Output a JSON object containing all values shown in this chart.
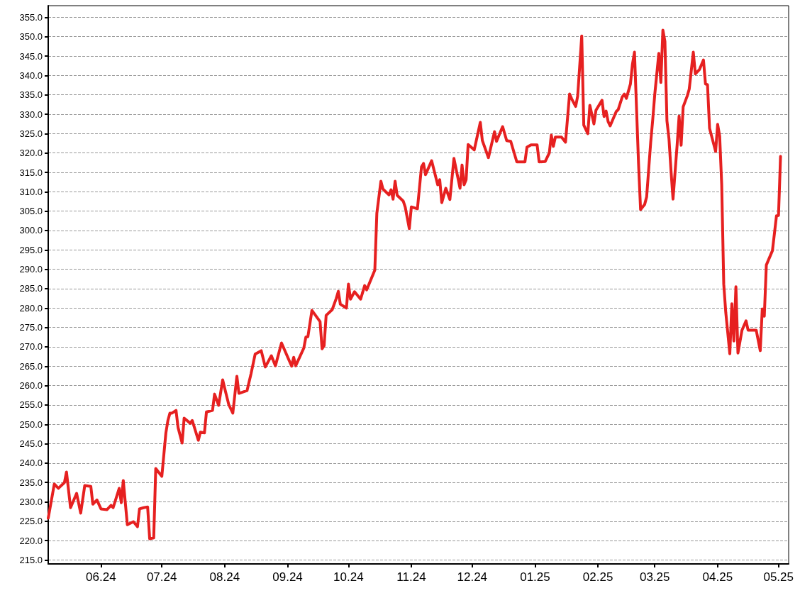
{
  "chart_data": {
    "type": "line",
    "color": "#e62020",
    "line_style": "solid",
    "marker": "none",
    "grid": "y",
    "xlim": [
      "2024-05-06",
      "2025-05-06"
    ],
    "xticks": [
      {
        "value": "2024-06-01",
        "label": "06.24"
      },
      {
        "value": "2024-07-01",
        "label": "07.24"
      },
      {
        "value": "2024-08-01",
        "label": "08.24"
      },
      {
        "value": "2024-09-01",
        "label": "09.24"
      },
      {
        "value": "2024-10-01",
        "label": "10.24"
      },
      {
        "value": "2024-11-01",
        "label": "11.24"
      },
      {
        "value": "2024-12-01",
        "label": "12.24"
      },
      {
        "value": "2025-01-01",
        "label": "01.25"
      },
      {
        "value": "2025-02-01",
        "label": "02.25"
      },
      {
        "value": "2025-03-01",
        "label": "03.25"
      },
      {
        "value": "2025-04-01",
        "label": "04.25"
      },
      {
        "value": "2025-05-01",
        "label": "05.25"
      }
    ],
    "ylim": [
      214,
      358
    ],
    "yticks": [
      {
        "value": 215,
        "label": "215.0"
      },
      {
        "value": 220,
        "label": "220.0"
      },
      {
        "value": 225,
        "label": "225.0"
      },
      {
        "value": 230,
        "label": "230.0"
      },
      {
        "value": 235,
        "label": "235.0"
      },
      {
        "value": 240,
        "label": "240.0"
      },
      {
        "value": 245,
        "label": "245.0"
      },
      {
        "value": 250,
        "label": "250.0"
      },
      {
        "value": 255,
        "label": "255.0"
      },
      {
        "value": 260,
        "label": "260.0"
      },
      {
        "value": 265,
        "label": "265.0"
      },
      {
        "value": 270,
        "label": "270.0"
      },
      {
        "value": 275,
        "label": "275.0"
      },
      {
        "value": 280,
        "label": "280.0"
      },
      {
        "value": 285,
        "label": "285.0"
      },
      {
        "value": 290,
        "label": "290.0"
      },
      {
        "value": 295,
        "label": "295.0"
      },
      {
        "value": 300,
        "label": "300.0"
      },
      {
        "value": 305,
        "label": "305.0"
      },
      {
        "value": 310,
        "label": "310.0"
      },
      {
        "value": 315,
        "label": "315.0"
      },
      {
        "value": 320,
        "label": "320.0"
      },
      {
        "value": 325,
        "label": "325.0"
      },
      {
        "value": 330,
        "label": "330.0"
      },
      {
        "value": 335,
        "label": "335.0"
      },
      {
        "value": 340,
        "label": "340.0"
      },
      {
        "value": 345,
        "label": "345.0"
      },
      {
        "value": 350,
        "label": "350.0"
      },
      {
        "value": 355,
        "label": "355.0"
      }
    ],
    "x": [
      "2024-05-06",
      "2024-05-09",
      "2024-05-11",
      "2024-05-14",
      "2024-05-15",
      "2024-05-17",
      "2024-05-20",
      "2024-05-22",
      "2024-05-24",
      "2024-05-27",
      "2024-05-28",
      "2024-05-30",
      "2024-06-01",
      "2024-06-04",
      "2024-06-06",
      "2024-06-07",
      "2024-06-10",
      "2024-06-11",
      "2024-06-12",
      "2024-06-14",
      "2024-06-17",
      "2024-06-19",
      "2024-06-20",
      "2024-06-22",
      "2024-06-24",
      "2024-06-25",
      "2024-06-27",
      "2024-06-28",
      "2024-07-01",
      "2024-07-03",
      "2024-07-04",
      "2024-07-05",
      "2024-07-06",
      "2024-07-08",
      "2024-07-09",
      "2024-07-11",
      "2024-07-12",
      "2024-07-15",
      "2024-07-16",
      "2024-07-19",
      "2024-07-20",
      "2024-07-22",
      "2024-07-23",
      "2024-07-26",
      "2024-07-27",
      "2024-07-29",
      "2024-07-31",
      "2024-08-01",
      "2024-08-03",
      "2024-08-05",
      "2024-08-07",
      "2024-08-08",
      "2024-08-12",
      "2024-08-14",
      "2024-08-16",
      "2024-08-19",
      "2024-08-21",
      "2024-08-24",
      "2024-08-26",
      "2024-08-29",
      "2024-09-03",
      "2024-09-04",
      "2024-09-05",
      "2024-09-09",
      "2024-09-10",
      "2024-09-11",
      "2024-09-13",
      "2024-09-17",
      "2024-09-18",
      "2024-09-19",
      "2024-09-20",
      "2024-09-23",
      "2024-09-25",
      "2024-09-26",
      "2024-09-27",
      "2024-09-30",
      "2024-10-01",
      "2024-10-02",
      "2024-10-04",
      "2024-10-07",
      "2024-10-09",
      "2024-10-10",
      "2024-10-14",
      "2024-10-15",
      "2024-10-17",
      "2024-10-18",
      "2024-10-21",
      "2024-10-22",
      "2024-10-23",
      "2024-10-24",
      "2024-10-25",
      "2024-10-28",
      "2024-10-29",
      "2024-10-31",
      "2024-11-01",
      "2024-11-04",
      "2024-11-06",
      "2024-11-07",
      "2024-11-08",
      "2024-11-11",
      "2024-11-14",
      "2024-11-15",
      "2024-11-16",
      "2024-11-18",
      "2024-11-20",
      "2024-11-22",
      "2024-11-25",
      "2024-11-26",
      "2024-11-27",
      "2024-11-28",
      "2024-11-29",
      "2024-12-02",
      "2024-12-05",
      "2024-12-06",
      "2024-12-09",
      "2024-12-12",
      "2024-12-13",
      "2024-12-16",
      "2024-12-18",
      "2024-12-20",
      "2024-12-23",
      "2024-12-27",
      "2024-12-28",
      "2024-12-30",
      "2025-01-02",
      "2025-01-03",
      "2025-01-06",
      "2025-01-08",
      "2025-01-09",
      "2025-01-10",
      "2025-01-11",
      "2025-01-14",
      "2025-01-16",
      "2025-01-18",
      "2025-01-19",
      "2025-01-21",
      "2025-01-22",
      "2025-01-24",
      "2025-01-25",
      "2025-01-27",
      "2025-01-28",
      "2025-01-30",
      "2025-01-31",
      "2025-02-03",
      "2025-02-04",
      "2025-02-05",
      "2025-02-06",
      "2025-02-07",
      "2025-02-10",
      "2025-02-11",
      "2025-02-13",
      "2025-02-14",
      "2025-02-15",
      "2025-02-17",
      "2025-02-18",
      "2025-02-19",
      "2025-02-21",
      "2025-02-22",
      "2025-02-24",
      "2025-02-25",
      "2025-02-27",
      "2025-02-28",
      "2025-03-01",
      "2025-03-03",
      "2025-03-04",
      "2025-03-05",
      "2025-03-06",
      "2025-03-07",
      "2025-03-08",
      "2025-03-09",
      "2025-03-10",
      "2025-03-12",
      "2025-03-13",
      "2025-03-14",
      "2025-03-15",
      "2025-03-17",
      "2025-03-18",
      "2025-03-20",
      "2025-03-21",
      "2025-03-23",
      "2025-03-25",
      "2025-03-26",
      "2025-03-27",
      "2025-03-28",
      "2025-03-31",
      "2025-04-01",
      "2025-04-02",
      "2025-04-03",
      "2025-04-04",
      "2025-04-05",
      "2025-04-07",
      "2025-04-08",
      "2025-04-09",
      "2025-04-10",
      "2025-04-11",
      "2025-04-13",
      "2025-04-15",
      "2025-04-16",
      "2025-04-18",
      "2025-04-20",
      "2025-04-22",
      "2025-04-23",
      "2025-04-24",
      "2025-04-25",
      "2025-04-28",
      "2025-04-30",
      "2025-05-01",
      "2025-05-02"
    ],
    "values": [
      225.8,
      234.6,
      233.5,
      235,
      237.7,
      228.5,
      232.2,
      227.1,
      234.2,
      234,
      229.4,
      230.5,
      228.2,
      228,
      229.1,
      228.5,
      233.5,
      229.8,
      235.5,
      224.1,
      224.9,
      223.6,
      228.2,
      228.5,
      228.7,
      220.5,
      220.7,
      238.6,
      236.6,
      247.8,
      251,
      252.9,
      252.9,
      253.6,
      249.2,
      245.2,
      251.6,
      250.3,
      251,
      245.9,
      248,
      247.8,
      253.2,
      253.6,
      257.8,
      254.9,
      261.5,
      259.3,
      255.1,
      252.9,
      262.4,
      258,
      258.7,
      263.1,
      268.1,
      269,
      264.8,
      267.7,
      265.1,
      271,
      265,
      267.3,
      265.1,
      269.7,
      272.5,
      272.6,
      279.4,
      276.5,
      269.5,
      270.3,
      278.1,
      279.6,
      282.5,
      284.3,
      281,
      280,
      286.2,
      282.3,
      284.2,
      282.3,
      285.8,
      284.7,
      289.8,
      304.5,
      312.7,
      310.7,
      309.2,
      310.5,
      308.1,
      312.7,
      309.1,
      307.6,
      306,
      300.5,
      306.1,
      305.6,
      316.4,
      317.3,
      314.4,
      318,
      311.8,
      313.1,
      307.2,
      310.9,
      308,
      318.6,
      310.9,
      316.9,
      311.8,
      313.1,
      322.2,
      320.8,
      327.9,
      323.2,
      318.8,
      325.5,
      323,
      326.8,
      323.2,
      323,
      317.7,
      317.7,
      321.5,
      322.1,
      322.1,
      317.7,
      317.8,
      320,
      324.6,
      321.7,
      324.1,
      324.1,
      322.8,
      335.2,
      334,
      332,
      334.7,
      350.2,
      327.2,
      325,
      332.3,
      327.5,
      331,
      333.6,
      329.4,
      330.8,
      328.1,
      327,
      330.7,
      331.2,
      334.5,
      335.2,
      334.1,
      337.8,
      342.9,
      346,
      317.3,
      305.4,
      306.7,
      308.7,
      322.8,
      328.6,
      335.1,
      345.7,
      338.2,
      351.7,
      348.8,
      328.3,
      323.7,
      315.5,
      308.1,
      321.9,
      329.5,
      322,
      331.9,
      334.7,
      336.5,
      346,
      340.4,
      341.5,
      344,
      337.8,
      337.6,
      326.4,
      320.4,
      327.4,
      324.3,
      311.8,
      286.2,
      278.9,
      268.2,
      281.1,
      271.5,
      285.5,
      268.4,
      274.3,
      276.7,
      274.3,
      274.3,
      274.3,
      269,
      279.8,
      277.9,
      291.1,
      294.8,
      303.8,
      303.9,
      319.1
    ]
  }
}
